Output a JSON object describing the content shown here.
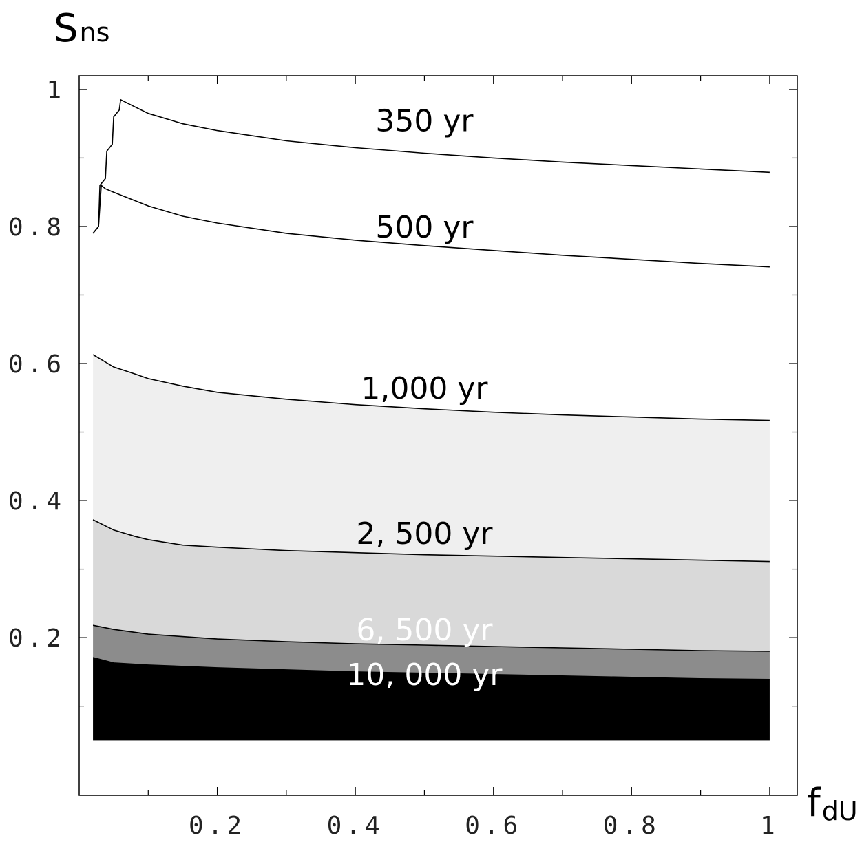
{
  "chart_data": {
    "type": "area",
    "subtype": "contour",
    "x_title": {
      "main": "f",
      "sub": "dU"
    },
    "y_title": {
      "main": "S",
      "sub": "ns"
    },
    "xlim": [
      0.0,
      1.04
    ],
    "ylim": [
      -0.03,
      1.02
    ],
    "data_x_range": [
      0.02,
      1.0
    ],
    "data_y_range": [
      0.05,
      1.0
    ],
    "x_ticks": [
      {
        "value": 0.2,
        "label": "0.2"
      },
      {
        "value": 0.4,
        "label": "0.4"
      },
      {
        "value": 0.6,
        "label": "0.6"
      },
      {
        "value": 0.8,
        "label": "0.8"
      },
      {
        "value": 1.0,
        "label": "1"
      }
    ],
    "y_ticks": [
      {
        "value": 0.2,
        "label": "0.2"
      },
      {
        "value": 0.4,
        "label": "0.4"
      },
      {
        "value": 0.6,
        "label": "0.6"
      },
      {
        "value": 0.8,
        "label": "0.8"
      },
      {
        "value": 1.0,
        "label": "1"
      }
    ],
    "x_minor_ticks": [
      0.1,
      0.3,
      0.5,
      0.7,
      0.9
    ],
    "y_minor_ticks": [
      0.1,
      0.3,
      0.5,
      0.7,
      0.9
    ],
    "contours": [
      {
        "label": "350 yr",
        "label_pos": [
          0.5,
          0.955
        ],
        "label_color": "#000000",
        "fill": "#ffffff",
        "points": [
          [
            0.02,
            0.79
          ],
          [
            0.028,
            0.8
          ],
          [
            0.03,
            0.86
          ],
          [
            0.038,
            0.87
          ],
          [
            0.04,
            0.91
          ],
          [
            0.048,
            0.92
          ],
          [
            0.05,
            0.96
          ],
          [
            0.058,
            0.97
          ],
          [
            0.06,
            0.985
          ],
          [
            0.08,
            0.975
          ],
          [
            0.1,
            0.965
          ],
          [
            0.15,
            0.95
          ],
          [
            0.2,
            0.94
          ],
          [
            0.3,
            0.925
          ],
          [
            0.4,
            0.915
          ],
          [
            0.5,
            0.907
          ],
          [
            0.6,
            0.9
          ],
          [
            0.7,
            0.894
          ],
          [
            0.8,
            0.889
          ],
          [
            0.9,
            0.884
          ],
          [
            1.0,
            0.879
          ]
        ]
      },
      {
        "label": "500 yr",
        "label_pos": [
          0.5,
          0.8
        ],
        "label_color": "#000000",
        "fill": "#ffffff",
        "points": [
          [
            0.02,
            0.79
          ],
          [
            0.028,
            0.8
          ],
          [
            0.032,
            0.86
          ],
          [
            0.038,
            0.855
          ],
          [
            0.05,
            0.85
          ],
          [
            0.1,
            0.83
          ],
          [
            0.15,
            0.815
          ],
          [
            0.2,
            0.805
          ],
          [
            0.3,
            0.79
          ],
          [
            0.4,
            0.78
          ],
          [
            0.5,
            0.772
          ],
          [
            0.6,
            0.765
          ],
          [
            0.7,
            0.758
          ],
          [
            0.8,
            0.752
          ],
          [
            0.9,
            0.746
          ],
          [
            1.0,
            0.741
          ]
        ]
      },
      {
        "label": "1,000 yr",
        "label_pos": [
          0.5,
          0.565
        ],
        "label_color": "#000000",
        "fill": "#efefef",
        "points": [
          [
            0.02,
            0.613
          ],
          [
            0.05,
            0.595
          ],
          [
            0.08,
            0.585
          ],
          [
            0.1,
            0.578
          ],
          [
            0.15,
            0.567
          ],
          [
            0.2,
            0.558
          ],
          [
            0.3,
            0.548
          ],
          [
            0.4,
            0.54
          ],
          [
            0.5,
            0.534
          ],
          [
            0.6,
            0.529
          ],
          [
            0.7,
            0.525
          ],
          [
            0.8,
            0.522
          ],
          [
            0.9,
            0.519
          ],
          [
            1.0,
            0.517
          ]
        ]
      },
      {
        "label": "2, 500 yr",
        "label_pos": [
          0.5,
          0.353
        ],
        "label_color": "#000000",
        "fill": "#d9d9d9",
        "points": [
          [
            0.02,
            0.372
          ],
          [
            0.05,
            0.357
          ],
          [
            0.08,
            0.348
          ],
          [
            0.1,
            0.343
          ],
          [
            0.15,
            0.335
          ],
          [
            0.2,
            0.332
          ],
          [
            0.3,
            0.327
          ],
          [
            0.4,
            0.324
          ],
          [
            0.5,
            0.321
          ],
          [
            0.6,
            0.319
          ],
          [
            0.7,
            0.317
          ],
          [
            0.8,
            0.315
          ],
          [
            0.9,
            0.313
          ],
          [
            1.0,
            0.311
          ]
        ]
      },
      {
        "label": "6, 500 yr",
        "label_pos": [
          0.5,
          0.212
        ],
        "label_color": "#ffffff",
        "fill": "#8c8c8c",
        "points": [
          [
            0.02,
            0.218
          ],
          [
            0.05,
            0.212
          ],
          [
            0.1,
            0.205
          ],
          [
            0.2,
            0.198
          ],
          [
            0.3,
            0.194
          ],
          [
            0.4,
            0.191
          ],
          [
            0.5,
            0.189
          ],
          [
            0.6,
            0.187
          ],
          [
            0.7,
            0.185
          ],
          [
            0.8,
            0.183
          ],
          [
            0.9,
            0.181
          ],
          [
            1.0,
            0.18
          ]
        ]
      },
      {
        "label": "10, 000 yr",
        "label_pos": [
          0.5,
          0.147
        ],
        "label_color": "#ffffff",
        "fill": "#000000",
        "points": [
          [
            0.02,
            0.171
          ],
          [
            0.05,
            0.163
          ],
          [
            0.1,
            0.16
          ],
          [
            0.2,
            0.156
          ],
          [
            0.3,
            0.153
          ],
          [
            0.4,
            0.15
          ],
          [
            0.5,
            0.148
          ],
          [
            0.6,
            0.146
          ],
          [
            0.7,
            0.144
          ],
          [
            0.8,
            0.142
          ],
          [
            0.9,
            0.14
          ],
          [
            1.0,
            0.139
          ]
        ]
      }
    ]
  }
}
